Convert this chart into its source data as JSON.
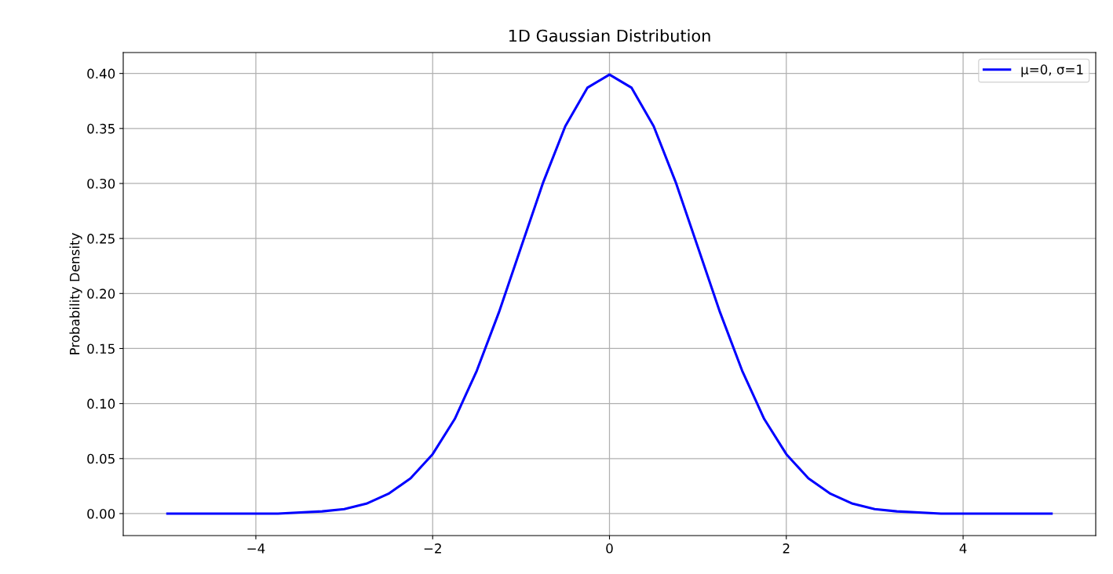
{
  "chart_data": {
    "type": "line",
    "title": "1D Gaussian Distribution",
    "ylabel": "Probability Density",
    "series": [
      {
        "name": "μ=0, σ=1",
        "color": "#0000ff",
        "x": [
          -5,
          -4.75,
          -4.5,
          -4.25,
          -4,
          -3.75,
          -3.5,
          -3.25,
          -3,
          -2.75,
          -2.5,
          -2.25,
          -2,
          -1.75,
          -1.5,
          -1.25,
          -1,
          -0.75,
          -0.5,
          -0.25,
          0,
          0.25,
          0.5,
          0.75,
          1,
          1.25,
          1.5,
          1.75,
          2,
          2.25,
          2.5,
          2.75,
          3,
          3.25,
          3.5,
          3.75,
          4,
          4.25,
          4.5,
          4.75,
          5
        ],
        "values": [
          0.0,
          0.0,
          0.0,
          0.0,
          0.0,
          0.0,
          0.001,
          0.002,
          0.004,
          0.009,
          0.018,
          0.032,
          0.054,
          0.086,
          0.13,
          0.183,
          0.242,
          0.301,
          0.352,
          0.387,
          0.399,
          0.387,
          0.352,
          0.301,
          0.242,
          0.183,
          0.13,
          0.086,
          0.054,
          0.032,
          0.018,
          0.009,
          0.004,
          0.002,
          0.001,
          0.0,
          0.0,
          0.0,
          0.0,
          0.0,
          0.0
        ]
      }
    ],
    "xlim": [
      -5.5,
      5.5
    ],
    "ylim": [
      -0.02,
      0.419
    ],
    "xticks": [
      {
        "value": -4,
        "label": "−4"
      },
      {
        "value": -2,
        "label": "−2"
      },
      0,
      2,
      4
    ],
    "yticks": [
      {
        "value": 0,
        "label": "0.00"
      },
      {
        "value": 0.05,
        "label": "0.05"
      },
      {
        "value": 0.1,
        "label": "0.10"
      },
      {
        "value": 0.15,
        "label": "0.15"
      },
      {
        "value": 0.2,
        "label": "0.20"
      },
      {
        "value": 0.25,
        "label": "0.25"
      },
      {
        "value": 0.3,
        "label": "0.30"
      },
      {
        "value": 0.35,
        "label": "0.35"
      },
      {
        "value": 0.4,
        "label": "0.40"
      }
    ],
    "grid": true,
    "legend": "top right",
    "marker": "none",
    "line_style": "solid"
  }
}
